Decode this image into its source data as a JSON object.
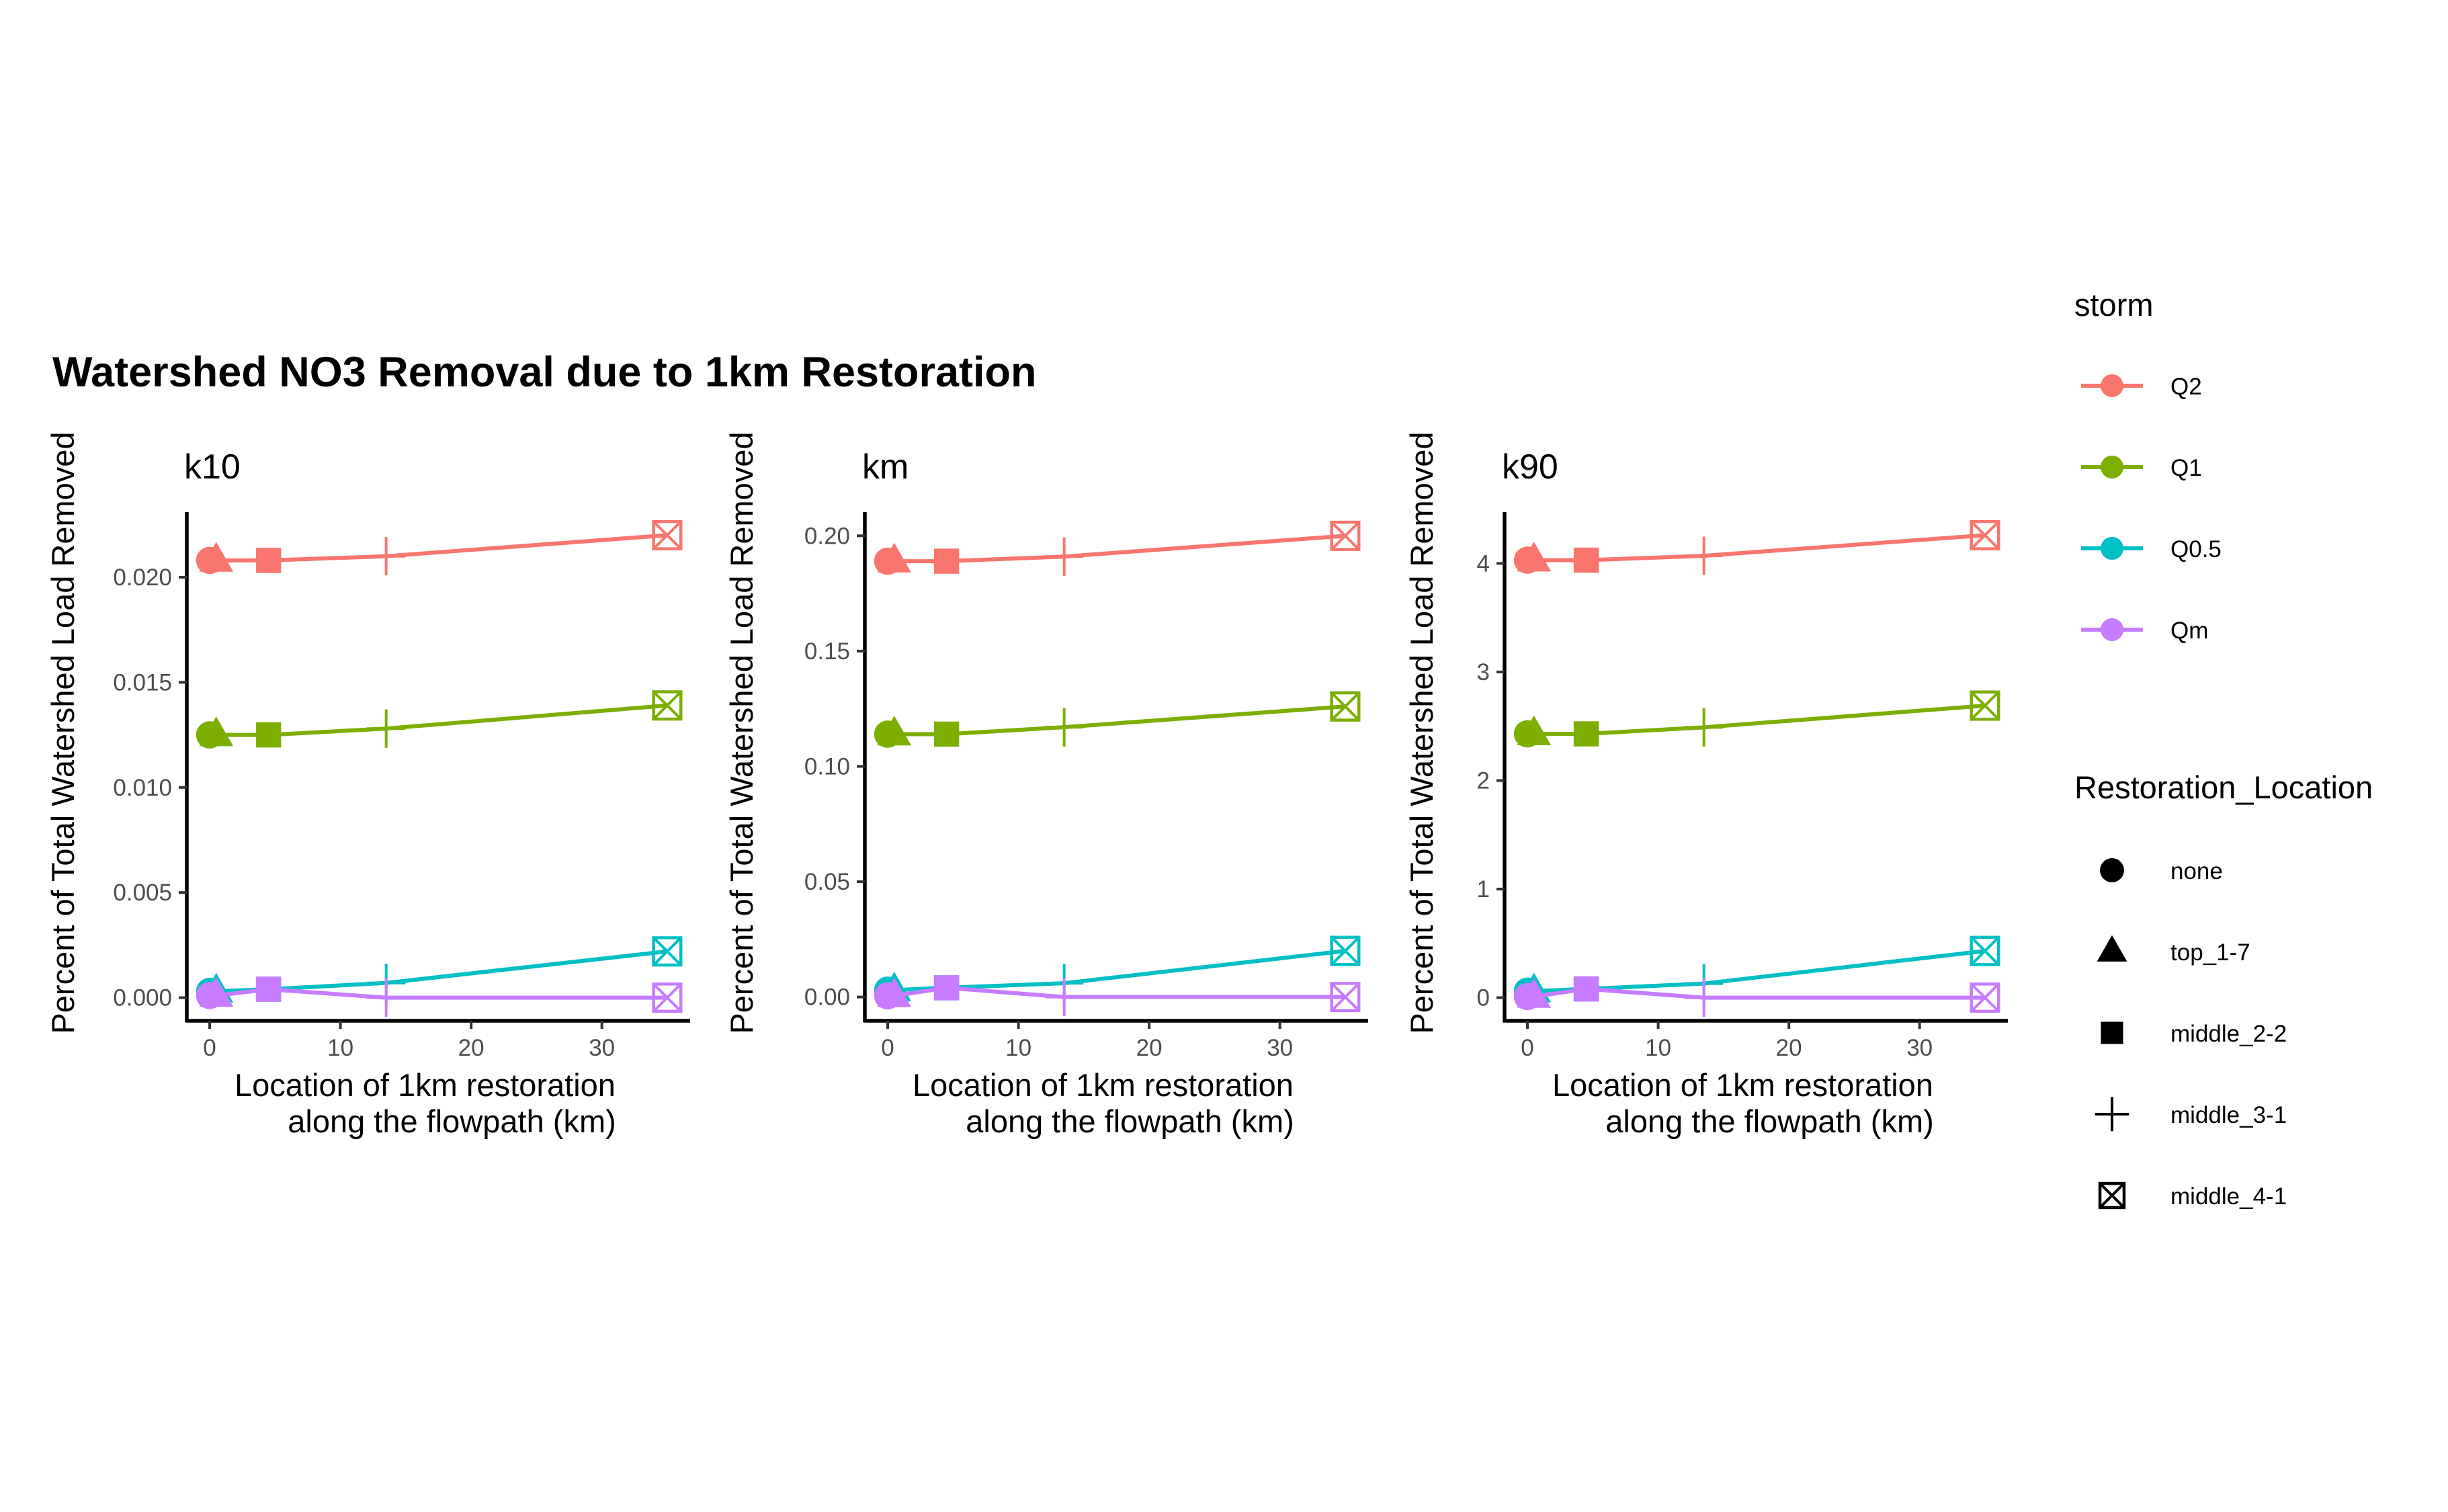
{
  "title": "Watershed NO3 Removal due to 1km Restoration",
  "colors": {
    "Q2": "#F8766D",
    "Q1": "#7CAE00",
    "Q0.5": "#00BFC4",
    "Qm": "#C77CFF"
  },
  "chart_data": [
    {
      "type": "line",
      "panel_title": "k10",
      "xlabel": "Location of 1km restoration\nalong the flowpath (km)",
      "ylabel": "Percent of Total Watershed Load Removed",
      "xlim": [
        -1.75,
        36.75
      ],
      "ylim": [
        -0.0011,
        0.0231
      ],
      "xticks": [
        0,
        10,
        20,
        30
      ],
      "yticks": [
        0.0,
        0.005,
        0.01,
        0.015,
        0.02
      ],
      "ytick_labels": [
        "0.000",
        "0.005",
        "0.010",
        "0.015",
        "0.020"
      ],
      "x": [
        0,
        0.5,
        4.5,
        13.5,
        35
      ],
      "point_shapes": [
        "none",
        "top_1-7",
        "middle_2-2",
        "middle_3-1",
        "middle_4-1"
      ],
      "series": [
        {
          "name": "Q2",
          "values": [
            0.0208,
            0.0208,
            0.0208,
            0.021,
            0.022
          ]
        },
        {
          "name": "Q1",
          "values": [
            0.0125,
            0.0125,
            0.0125,
            0.0128,
            0.0139
          ]
        },
        {
          "name": "Q0.5",
          "values": [
            0.0003,
            0.0003,
            0.0004,
            0.0007,
            0.0022
          ]
        },
        {
          "name": "Qm",
          "values": [
            0.0001,
            0.0001,
            0.0004,
            0.0,
            0.0
          ]
        }
      ]
    },
    {
      "type": "line",
      "panel_title": "km",
      "xlabel": "Location of 1km restoration\nalong the flowpath (km)",
      "ylabel": "Percent of Total Watershed Load Removed",
      "xlim": [
        -1.75,
        36.75
      ],
      "ylim": [
        -0.0103,
        0.2103
      ],
      "xticks": [
        0,
        10,
        20,
        30
      ],
      "yticks": [
        0.0,
        0.05,
        0.1,
        0.15,
        0.2
      ],
      "ytick_labels": [
        "0.00",
        "0.05",
        "0.10",
        "0.15",
        "0.20"
      ],
      "x": [
        0,
        0.5,
        4.5,
        13.5,
        35
      ],
      "point_shapes": [
        "none",
        "top_1-7",
        "middle_2-2",
        "middle_3-1",
        "middle_4-1"
      ],
      "series": [
        {
          "name": "Q2",
          "values": [
            0.189,
            0.189,
            0.189,
            0.191,
            0.2
          ]
        },
        {
          "name": "Q1",
          "values": [
            0.114,
            0.114,
            0.114,
            0.117,
            0.126
          ]
        },
        {
          "name": "Q0.5",
          "values": [
            0.003,
            0.003,
            0.004,
            0.006,
            0.02
          ]
        },
        {
          "name": "Qm",
          "values": [
            0.0005,
            0.0005,
            0.004,
            0.0,
            0.0
          ]
        }
      ]
    },
    {
      "type": "line",
      "panel_title": "k90",
      "xlabel": "Location of 1km restoration\nalong the flowpath (km)",
      "ylabel": "Percent of Total Watershed Load Removed",
      "xlim": [
        -1.75,
        36.75
      ],
      "ylim": [
        -0.213,
        4.473
      ],
      "xticks": [
        0,
        10,
        20,
        30
      ],
      "yticks": [
        0,
        1,
        2,
        3,
        4
      ],
      "ytick_labels": [
        "0",
        "1",
        "2",
        "3",
        "4"
      ],
      "x": [
        0,
        0.5,
        4.5,
        13.5,
        35
      ],
      "point_shapes": [
        "none",
        "top_1-7",
        "middle_2-2",
        "middle_3-1",
        "middle_4-1"
      ],
      "series": [
        {
          "name": "Q2",
          "values": [
            4.03,
            4.03,
            4.03,
            4.07,
            4.26
          ]
        },
        {
          "name": "Q1",
          "values": [
            2.43,
            2.43,
            2.43,
            2.49,
            2.69
          ]
        },
        {
          "name": "Q0.5",
          "values": [
            0.06,
            0.06,
            0.08,
            0.13,
            0.43
          ]
        },
        {
          "name": "Qm",
          "values": [
            0.01,
            0.01,
            0.08,
            0.0,
            0.0
          ]
        }
      ]
    }
  ],
  "legend": {
    "storm": {
      "title": "storm",
      "items": [
        "Q2",
        "Q1",
        "Q0.5",
        "Qm"
      ]
    },
    "restoration": {
      "title": "Restoration_Location",
      "items": [
        "none",
        "top_1-7",
        "middle_2-2",
        "middle_3-1",
        "middle_4-1"
      ]
    }
  }
}
